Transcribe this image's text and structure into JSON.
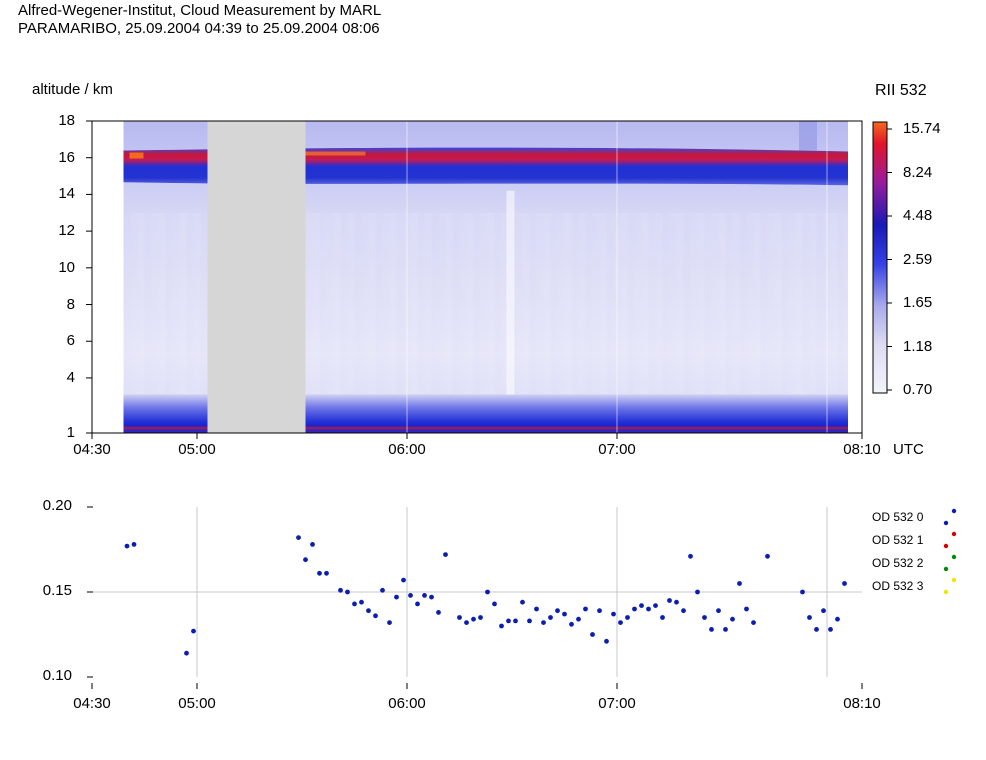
{
  "header": {
    "title_line1": "Alfred-Wegener-Institut, Cloud Measurement by MARL",
    "title_line2": "PARAMARIBO, 25.09.2004 04:39 to 25.09.2004 08:06"
  },
  "colors": {
    "background": "#ffffff",
    "no_data_gap": "#d6d6d6",
    "series_blue": "#0a1fb0",
    "series_red": "#d40000",
    "series_green": "#008a00",
    "series_yellow": "#f2e600",
    "gridline": "#c8c8c8"
  },
  "chart_data": [
    {
      "type": "heatmap",
      "ylabel": "altitude / km",
      "xlabel": "UTC",
      "colorbar_title": "RII  532",
      "colorbar_ticks": [
        "15.74",
        "8.24",
        "4.48",
        "2.59",
        "1.65",
        "1.18",
        "0.70"
      ],
      "ylim": [
        1,
        18
      ],
      "y_ticks": [
        "18",
        "16",
        "14",
        "12",
        "10",
        "8",
        "6",
        "4",
        "1"
      ],
      "y_tick_values": [
        18,
        16,
        14,
        12,
        10,
        8,
        6,
        4,
        1
      ],
      "x_ticks": [
        "04:30",
        "05:00",
        "06:00",
        "07:00",
        "08:10"
      ],
      "x_tick_values": [
        "04:30",
        "05:00",
        "06:00",
        "07:00",
        "08:10"
      ],
      "xlim": [
        "04:30",
        "08:10"
      ],
      "data_range": [
        "04:39",
        "08:06"
      ],
      "no_data_interval": [
        "05:03",
        "05:31"
      ],
      "layers": [
        {
          "altitude_range_km": [
            14.5,
            16.5
          ],
          "description_level": "high",
          "peak_value": 15.74
        },
        {
          "altitude_range_km": [
            1,
            2.5
          ],
          "description_level": "high",
          "peak_value": 8.24
        }
      ]
    },
    {
      "type": "scatter",
      "legend": [
        "OD 532 0",
        "OD 532 1",
        "OD 532 2",
        "OD 532 3"
      ],
      "legend_position": "right",
      "ylim": [
        0.1,
        0.2
      ],
      "y_ticks": [
        "0.20",
        "0.15",
        "0.10"
      ],
      "y_tick_values": [
        0.2,
        0.15,
        0.1
      ],
      "x_ticks": [
        "04:30",
        "05:00",
        "06:00",
        "07:00",
        "08:10"
      ],
      "x_tick_values": [
        "04:30",
        "05:00",
        "06:00",
        "07:00",
        "08:10"
      ],
      "xlim": [
        "04:30",
        "08:10"
      ],
      "grid": true,
      "series": [
        {
          "name": "OD 532 0",
          "x": [
            "04:40",
            "04:42",
            "04:57",
            "04:59",
            "05:29",
            "05:31",
            "05:33",
            "05:35",
            "05:37",
            "05:41",
            "05:43",
            "05:45",
            "05:47",
            "05:49",
            "05:51",
            "05:53",
            "05:55",
            "05:57",
            "05:59",
            "06:01",
            "06:03",
            "06:05",
            "06:07",
            "06:09",
            "06:11",
            "06:15",
            "06:17",
            "06:19",
            "06:21",
            "06:23",
            "06:25",
            "06:27",
            "06:29",
            "06:31",
            "06:33",
            "06:35",
            "06:37",
            "06:39",
            "06:41",
            "06:43",
            "06:45",
            "06:47",
            "06:49",
            "06:51",
            "06:53",
            "06:55",
            "06:57",
            "06:59",
            "07:01",
            "07:03",
            "07:05",
            "07:07",
            "07:09",
            "07:11",
            "07:13",
            "07:15",
            "07:17",
            "07:19",
            "07:21",
            "07:23",
            "07:25",
            "07:27",
            "07:29",
            "07:31",
            "07:33",
            "07:35",
            "07:37",
            "07:39",
            "07:43",
            "07:53",
            "07:55",
            "07:57",
            "07:59",
            "08:01",
            "08:03",
            "08:05"
          ],
          "y": [
            0.177,
            0.178,
            0.114,
            0.127,
            0.182,
            0.169,
            0.178,
            0.161,
            0.161,
            0.151,
            0.15,
            0.143,
            0.144,
            0.139,
            0.136,
            0.151,
            0.132,
            0.147,
            0.157,
            0.148,
            0.143,
            0.148,
            0.147,
            0.138,
            0.172,
            0.135,
            0.132,
            0.134,
            0.135,
            0.15,
            0.143,
            0.13,
            0.133,
            0.133,
            0.144,
            0.133,
            0.14,
            0.132,
            0.135,
            0.139,
            0.137,
            0.131,
            0.134,
            0.14,
            0.125,
            0.139,
            0.121,
            0.137,
            0.132,
            0.135,
            0.14,
            0.142,
            0.14,
            0.142,
            0.135,
            0.145,
            0.144,
            0.139,
            0.171,
            0.15,
            0.135,
            0.128,
            0.139,
            0.128,
            0.134,
            0.155,
            0.14,
            0.132,
            0.171,
            0.15,
            0.135,
            0.128,
            0.139,
            0.128,
            0.134,
            0.155
          ]
        }
      ]
    }
  ]
}
